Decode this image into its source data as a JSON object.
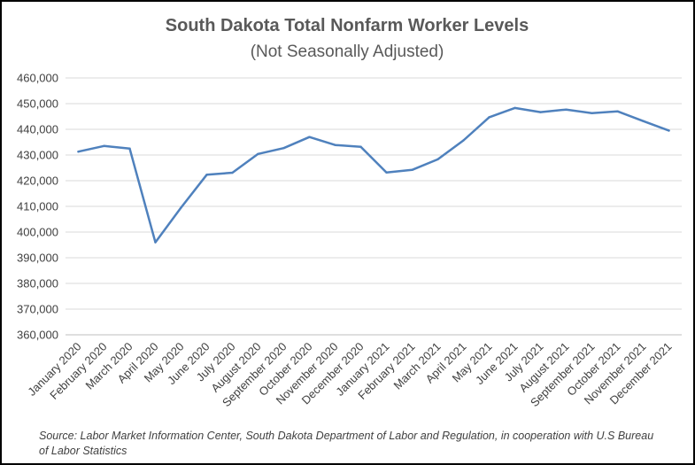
{
  "chart_data": {
    "type": "line",
    "title": "South Dakota Total Nonfarm Worker Levels",
    "subtitle": "(Not Seasonally Adjusted)",
    "xlabel": "",
    "ylabel": "",
    "ylim": [
      360000,
      460000
    ],
    "ytick_step": 10000,
    "yticks": [
      "360,000",
      "370,000",
      "380,000",
      "390,000",
      "400,000",
      "410,000",
      "420,000",
      "430,000",
      "440,000",
      "450,000",
      "460,000"
    ],
    "grid": true,
    "legend": "none",
    "categories": [
      "January 2020",
      "February 2020",
      "March 2020",
      "April 2020",
      "May 2020",
      "June 2020",
      "July 2020",
      "August 2020",
      "September 2020",
      "October 2020",
      "November 2020",
      "December 2020",
      "January 2021",
      "February 2021",
      "March 2021",
      "April 2021",
      "May 2021",
      "June 2021",
      "July 2021",
      "August 2021",
      "September 2021",
      "October 2021",
      "November 2021",
      "December 2021"
    ],
    "series": [
      {
        "color": "#4f81bd",
        "values": [
          431300,
          433500,
          432500,
          396000,
          409500,
          422300,
          423100,
          430400,
          432700,
          437000,
          433900,
          433200,
          423200,
          424200,
          428300,
          435700,
          444700,
          448300,
          446700,
          447700,
          446300,
          447000,
          443200,
          439500
        ]
      }
    ]
  },
  "source_text": "Source: Labor Market Information Center, South Dakota Department of Labor and Regulation, in cooperation with U.S Bureau of Labor Statistics"
}
